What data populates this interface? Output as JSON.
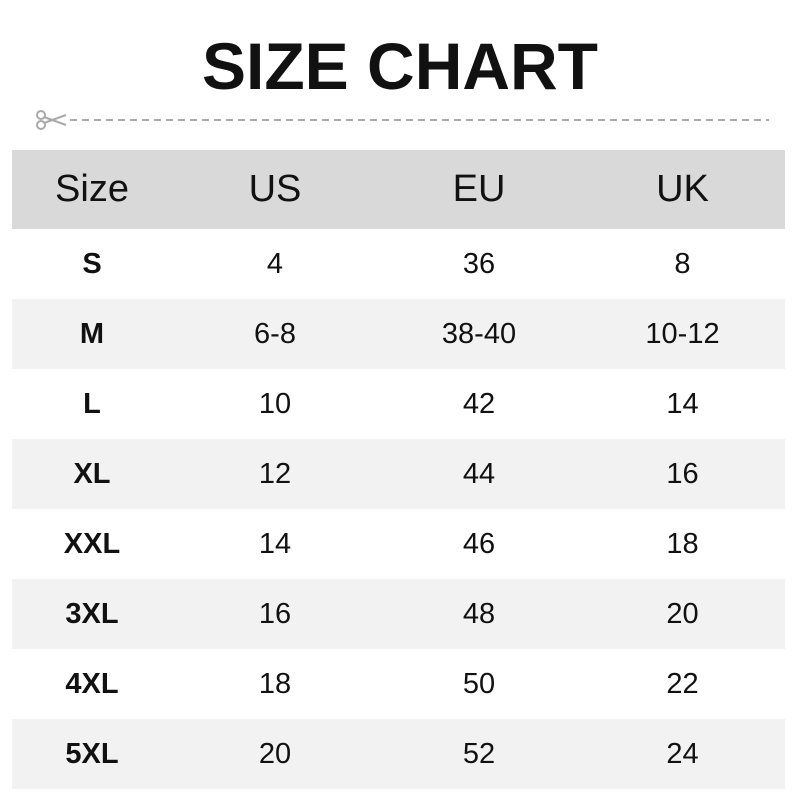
{
  "title": "SIZE CHART",
  "icons": {
    "cut": "scissors-icon"
  },
  "colors": {
    "header_bg": "#d9d9d9",
    "alt_row_bg": "#f2f2f2",
    "text": "#111111",
    "cutline": "#aaaaaa"
  },
  "chart_data": {
    "type": "table",
    "title": "SIZE CHART",
    "columns": [
      "Size",
      "US",
      "EU",
      "UK"
    ],
    "rows": [
      [
        "S",
        "4",
        "36",
        "8"
      ],
      [
        "M",
        "6-8",
        "38-40",
        "10-12"
      ],
      [
        "L",
        "10",
        "42",
        "14"
      ],
      [
        "XL",
        "12",
        "44",
        "16"
      ],
      [
        "XXL",
        "14",
        "46",
        "18"
      ],
      [
        "3XL",
        "16",
        "48",
        "20"
      ],
      [
        "4XL",
        "18",
        "50",
        "22"
      ],
      [
        "5XL",
        "20",
        "52",
        "24"
      ]
    ]
  }
}
